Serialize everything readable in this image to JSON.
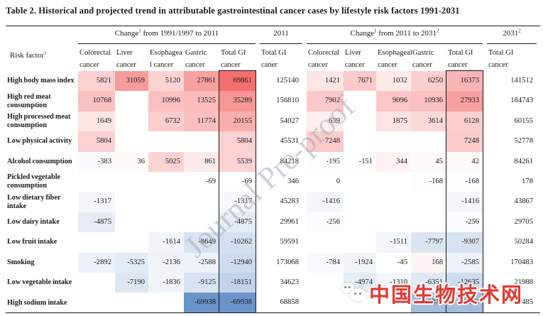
{
  "page": {
    "title": "Table 2. Historical and projected trend in attributable gastrointestinal cancer cases by lifestyle risk factors 1991-2031"
  },
  "watermarks": {
    "diagonal_text": "Journal Pre-proof",
    "site_text": "中国生物技术网"
  },
  "table": {
    "risk_factor_header": {
      "text": "Risk factor",
      "sup": "3"
    },
    "group_headers": [
      {
        "segments": [
          {
            "t": "Change"
          },
          {
            "sup": "1"
          },
          {
            "t": " from 1991/1997 to 2011"
          }
        ]
      },
      {
        "segments": [
          {
            "t": "2011"
          }
        ]
      },
      {
        "segments": [
          {
            "t": "Change"
          },
          {
            "sup": "1"
          },
          {
            "t": " from 2011 to 2031"
          },
          {
            "sup": "2"
          }
        ]
      },
      {
        "segments": [
          {
            "t": "2031"
          },
          {
            "sup": "2"
          }
        ]
      }
    ],
    "column_headers": [
      [
        "Colorectal",
        "cancer"
      ],
      [
        "Liver",
        "cancer"
      ],
      [
        "Esophagea",
        "l cancer"
      ],
      [
        "Gastric",
        "cancer"
      ],
      [
        "Total GI",
        "cancer"
      ],
      [
        "Total GI",
        "caner"
      ],
      [
        "Colorectal",
        "cancer"
      ],
      [
        "Liver",
        "cancer"
      ],
      [
        "Esophageal",
        "cancer"
      ],
      [
        "Gastric",
        "cancer"
      ],
      [
        "Total GI",
        "cancer"
      ],
      [
        "Total GI",
        "cancer"
      ]
    ],
    "rows": [
      {
        "label": "High body mass index",
        "values": [
          5821,
          31059,
          5120,
          27861,
          69861,
          125140,
          1421,
          7671,
          1032,
          6250,
          16373,
          141512
        ]
      },
      {
        "label": "High red meat consumption",
        "values": [
          10768,
          null,
          10996,
          13525,
          35289,
          156810,
          7902,
          null,
          9096,
          10936,
          27933,
          184743
        ]
      },
      {
        "label": "High processed meat consumption",
        "values": [
          1649,
          null,
          6732,
          11774,
          20155,
          54027,
          639,
          null,
          1875,
          3614,
          6128,
          60155
        ]
      },
      {
        "label": "Low physical activity",
        "values": [
          5804,
          null,
          null,
          null,
          5804,
          45531,
          7248,
          null,
          null,
          null,
          7248,
          52778
        ]
      },
      {
        "label": "Alcohol consumption",
        "values": [
          -383,
          36,
          5025,
          861,
          5539,
          84218,
          -195,
          -151,
          344,
          45,
          42,
          84261
        ]
      },
      {
        "label": "Pickled vegetable consumption",
        "values": [
          null,
          null,
          null,
          -69,
          -69,
          346,
          0,
          null,
          null,
          -168,
          -168,
          178
        ]
      },
      {
        "label": "Low dietary fiber intake",
        "values": [
          -1317,
          null,
          null,
          null,
          -1317,
          45283,
          -1416,
          null,
          null,
          null,
          -1416,
          43867
        ]
      },
      {
        "label": "Low dairy intake",
        "values": [
          -4875,
          null,
          null,
          null,
          -4875,
          29961,
          -256,
          null,
          null,
          null,
          -256,
          29705
        ]
      },
      {
        "label": "Low fruit intake",
        "values": [
          null,
          null,
          -1614,
          -8649,
          -10262,
          59591,
          null,
          null,
          -1511,
          -7797,
          -9307,
          50284
        ]
      },
      {
        "label": "Smoking",
        "values": [
          -2892,
          -5325,
          -2136,
          -2588,
          -12940,
          173068,
          -784,
          -1924,
          -45,
          168,
          -2585,
          170483
        ]
      },
      {
        "label": "Low vegetable intake",
        "values": [
          null,
          -7190,
          -1836,
          -9125,
          -18151,
          34623,
          null,
          -4974,
          -1310,
          -6351,
          -12635,
          21988
        ]
      },
      {
        "label": "High sodium intake",
        "values": [
          null,
          null,
          null,
          -69938,
          -69938,
          68858,
          null,
          null,
          null,
          -33373,
          -33373,
          35485
        ]
      }
    ],
    "heat_columns": [
      0,
      1,
      2,
      3,
      4,
      6,
      7,
      8,
      9,
      10
    ],
    "colors": {
      "positive": "#f4706e",
      "negative": "#6b94ca",
      "max_abs": 69938
    }
  }
}
